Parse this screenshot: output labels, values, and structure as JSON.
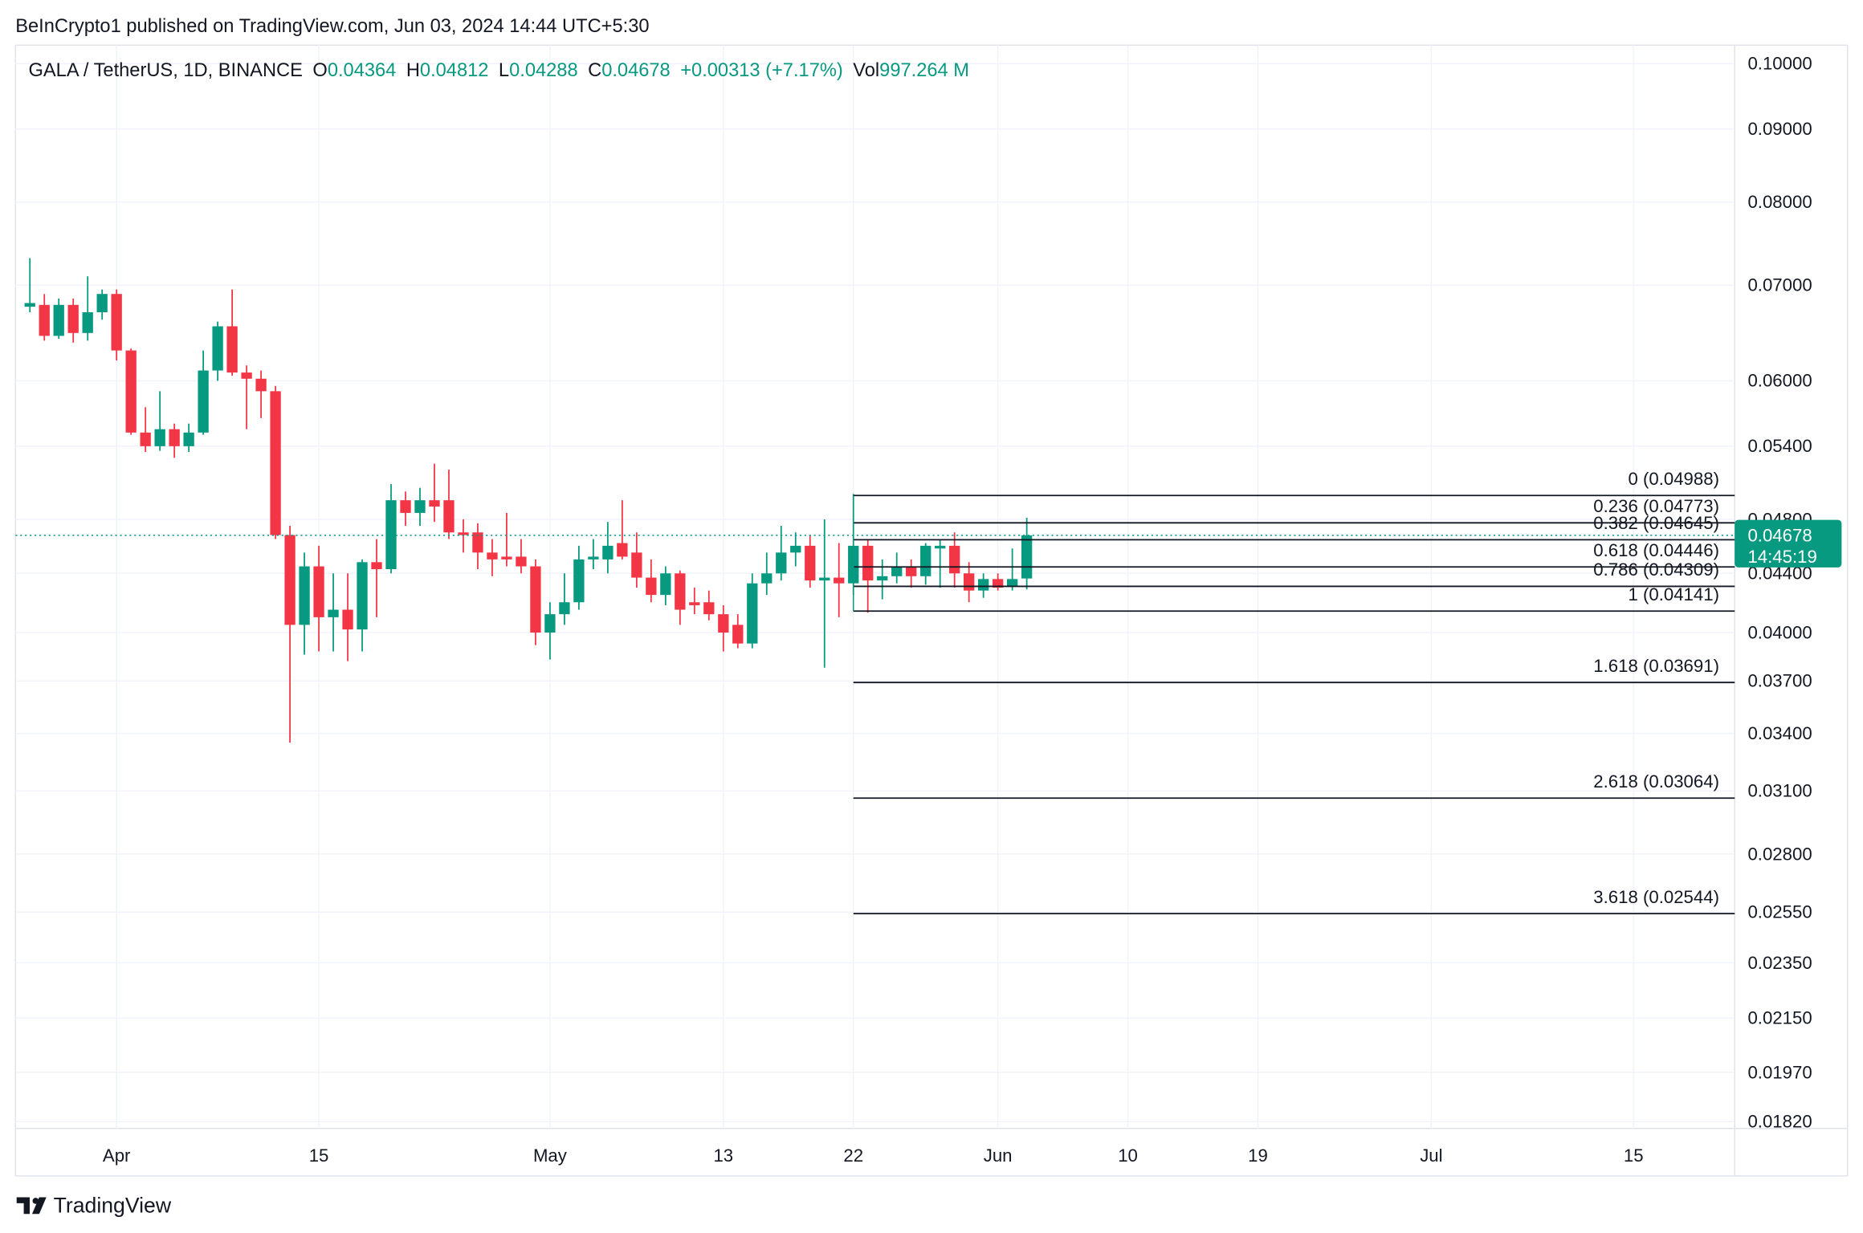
{
  "chart_data": {
    "type": "candlestick",
    "header": "BeInCrypto1 published on TradingView.com, Jun 03, 2024 14:44 UTC+5:30",
    "info": {
      "symbol": "GALA / TetherUS, 1D, BINANCE",
      "open_label": "O",
      "open": 0.04364,
      "high_label": "H",
      "high": 0.04812,
      "low_label": "L",
      "low": 0.04288,
      "close_label": "C",
      "close": 0.04678,
      "change": "+0.00313 (+7.17%)",
      "vol_label": "Vol",
      "volume": "997.264 M"
    },
    "x": [
      "2024-03-26",
      "2024-03-27",
      "2024-03-28",
      "2024-03-29",
      "2024-03-30",
      "2024-03-31",
      "2024-04-01",
      "2024-04-02",
      "2024-04-03",
      "2024-04-04",
      "2024-04-05",
      "2024-04-06",
      "2024-04-07",
      "2024-04-08",
      "2024-04-09",
      "2024-04-10",
      "2024-04-11",
      "2024-04-12",
      "2024-04-13",
      "2024-04-14",
      "2024-04-15",
      "2024-04-16",
      "2024-04-17",
      "2024-04-18",
      "2024-04-19",
      "2024-04-20",
      "2024-04-21",
      "2024-04-22",
      "2024-04-23",
      "2024-04-24",
      "2024-04-25",
      "2024-04-26",
      "2024-04-27",
      "2024-04-28",
      "2024-04-29",
      "2024-04-30",
      "2024-05-01",
      "2024-05-02",
      "2024-05-03",
      "2024-05-04",
      "2024-05-05",
      "2024-05-06",
      "2024-05-07",
      "2024-05-08",
      "2024-05-09",
      "2024-05-10",
      "2024-05-11",
      "2024-05-12",
      "2024-05-13",
      "2024-05-14",
      "2024-05-15",
      "2024-05-16",
      "2024-05-17",
      "2024-05-18",
      "2024-05-19",
      "2024-05-20",
      "2024-05-21",
      "2024-05-22",
      "2024-05-23",
      "2024-05-24",
      "2024-05-25",
      "2024-05-26",
      "2024-05-27",
      "2024-05-28",
      "2024-05-29",
      "2024-05-30",
      "2024-05-31",
      "2024-06-01",
      "2024-06-02",
      "2024-06-03"
    ],
    "open": [
      0.0676,
      0.0678,
      0.0645,
      0.0678,
      0.0648,
      0.067,
      0.069,
      0.063,
      0.0552,
      0.054,
      0.0555,
      0.054,
      0.0552,
      0.061,
      0.0655,
      0.0608,
      0.0602,
      0.059,
      0.0468,
      0.0405,
      0.0445,
      0.041,
      0.0415,
      0.0402,
      0.0448,
      0.0443,
      0.0495,
      0.0485,
      0.0495,
      0.0495,
      0.047,
      0.047,
      0.0455,
      0.0452,
      0.0452,
      0.0445,
      0.04,
      0.0412,
      0.042,
      0.045,
      0.045,
      0.0462,
      0.0455,
      0.0437,
      0.0425,
      0.044,
      0.042,
      0.042,
      0.0412,
      0.0405,
      0.0393,
      0.0433,
      0.044,
      0.0455,
      0.046,
      0.0435,
      0.0437,
      0.0433,
      0.046,
      0.0435,
      0.0438,
      0.0445,
      0.0438,
      0.0458,
      0.046,
      0.044,
      0.0428,
      0.0436,
      0.0431,
      0.04364
    ],
    "high": [
      0.0731,
      0.069,
      0.0685,
      0.0685,
      0.071,
      0.0695,
      0.0695,
      0.0632,
      0.0575,
      0.059,
      0.056,
      0.056,
      0.063,
      0.066,
      0.0695,
      0.0615,
      0.061,
      0.0595,
      0.0475,
      0.0455,
      0.046,
      0.044,
      0.044,
      0.045,
      0.0465,
      0.0508,
      0.0502,
      0.0505,
      0.0525,
      0.052,
      0.048,
      0.0477,
      0.0465,
      0.0485,
      0.0465,
      0.045,
      0.042,
      0.044,
      0.046,
      0.0465,
      0.0478,
      0.0495,
      0.047,
      0.045,
      0.0445,
      0.0442,
      0.043,
      0.0428,
      0.0418,
      0.0412,
      0.044,
      0.0455,
      0.0475,
      0.047,
      0.0468,
      0.048,
      0.0462,
      0.05,
      0.0465,
      0.045,
      0.0455,
      0.045,
      0.0462,
      0.0465,
      0.047,
      0.0448,
      0.044,
      0.044,
      0.0458,
      0.04812
    ],
    "low": [
      0.067,
      0.064,
      0.0642,
      0.0638,
      0.064,
      0.0662,
      0.062,
      0.055,
      0.0535,
      0.0536,
      0.053,
      0.0535,
      0.055,
      0.06,
      0.0605,
      0.0555,
      0.0565,
      0.0465,
      0.0335,
      0.0386,
      0.0388,
      0.0388,
      0.0382,
      0.0388,
      0.041,
      0.044,
      0.0475,
      0.0475,
      0.0478,
      0.0465,
      0.0455,
      0.0443,
      0.0438,
      0.0445,
      0.044,
      0.0392,
      0.0383,
      0.0405,
      0.0415,
      0.0443,
      0.044,
      0.045,
      0.043,
      0.042,
      0.0418,
      0.0405,
      0.0412,
      0.0408,
      0.0388,
      0.039,
      0.039,
      0.0425,
      0.0435,
      0.0445,
      0.043,
      0.0378,
      0.041,
      0.0425,
      0.0413,
      0.0422,
      0.0433,
      0.043,
      0.0432,
      0.043,
      0.043,
      0.042,
      0.0423,
      0.0428,
      0.0428,
      0.04288
    ],
    "close": [
      0.068,
      0.0645,
      0.0678,
      0.0648,
      0.067,
      0.069,
      0.063,
      0.0552,
      0.054,
      0.0555,
      0.054,
      0.0552,
      0.061,
      0.0655,
      0.0608,
      0.0602,
      0.059,
      0.0468,
      0.0405,
      0.0445,
      0.041,
      0.0415,
      0.0402,
      0.0448,
      0.0443,
      0.0495,
      0.0485,
      0.0495,
      0.049,
      0.047,
      0.0468,
      0.0455,
      0.045,
      0.045,
      0.0445,
      0.04,
      0.0412,
      0.042,
      0.045,
      0.0452,
      0.046,
      0.0452,
      0.0437,
      0.0425,
      0.044,
      0.0415,
      0.0418,
      0.0412,
      0.04,
      0.0393,
      0.0433,
      0.044,
      0.0455,
      0.046,
      0.0435,
      0.0437,
      0.0433,
      0.046,
      0.0435,
      0.0438,
      0.0445,
      0.0438,
      0.046,
      0.046,
      0.044,
      0.0428,
      0.0436,
      0.043,
      0.0436,
      0.04678
    ],
    "up_color": "#089981",
    "down_color": "#f23645",
    "log_scale": true,
    "grid": true,
    "xlim": [
      "2024-03-25",
      "2024-07-22"
    ],
    "xticks": [
      {
        "value": "2024-04-01",
        "label": "Apr"
      },
      {
        "value": "2024-04-15",
        "label": "15"
      },
      {
        "value": "2024-05-01",
        "label": "May"
      },
      {
        "value": "2024-05-13",
        "label": "13"
      },
      {
        "value": "2024-05-22",
        "label": "22"
      },
      {
        "value": "2024-06-01",
        "label": "Jun"
      },
      {
        "value": "2024-06-10",
        "label": "10"
      },
      {
        "value": "2024-06-19",
        "label": "19"
      },
      {
        "value": "2024-07-01",
        "label": "Jul"
      },
      {
        "value": "2024-07-15",
        "label": "15"
      }
    ],
    "ylim": [
      0.018,
      0.103
    ],
    "yticks": [
      {
        "value": 0.1,
        "label": "0.10000"
      },
      {
        "value": 0.09,
        "label": "0.09000"
      },
      {
        "value": 0.08,
        "label": "0.08000"
      },
      {
        "value": 0.07,
        "label": "0.07000"
      },
      {
        "value": 0.06,
        "label": "0.06000"
      },
      {
        "value": 0.054,
        "label": "0.05400"
      },
      {
        "value": 0.048,
        "label": "0.04800"
      },
      {
        "value": 0.044,
        "label": "0.04400"
      },
      {
        "value": 0.04,
        "label": "0.04000"
      },
      {
        "value": 0.037,
        "label": "0.03700"
      },
      {
        "value": 0.034,
        "label": "0.03400"
      },
      {
        "value": 0.031,
        "label": "0.03100"
      },
      {
        "value": 0.028,
        "label": "0.02800"
      },
      {
        "value": 0.0255,
        "label": "0.02550"
      },
      {
        "value": 0.0235,
        "label": "0.02350"
      },
      {
        "value": 0.0215,
        "label": "0.02150"
      },
      {
        "value": 0.0197,
        "label": "0.01970"
      },
      {
        "value": 0.0182,
        "label": "0.01820"
      }
    ],
    "fib": {
      "start": "2024-05-22",
      "levels": [
        {
          "label": "0 (0.04988)",
          "value": 0.04988
        },
        {
          "label": "0.236 (0.04773)",
          "value": 0.04773
        },
        {
          "label": "0.382 (0.04645)",
          "value": 0.04645
        },
        {
          "label": "0.618 (0.04446)",
          "value": 0.04446
        },
        {
          "label": "0.786 (0.04309)",
          "value": 0.04309
        },
        {
          "label": "1 (0.04141)",
          "value": 0.04141
        },
        {
          "label": "1.618 (0.03691)",
          "value": 0.03691
        },
        {
          "label": "2.618 (0.03064)",
          "value": 0.03064
        },
        {
          "label": "3.618 (0.02544)",
          "value": 0.02544
        }
      ]
    },
    "last_price": 0.04678,
    "countdown": "14:45:19",
    "brand": "TradingView"
  }
}
